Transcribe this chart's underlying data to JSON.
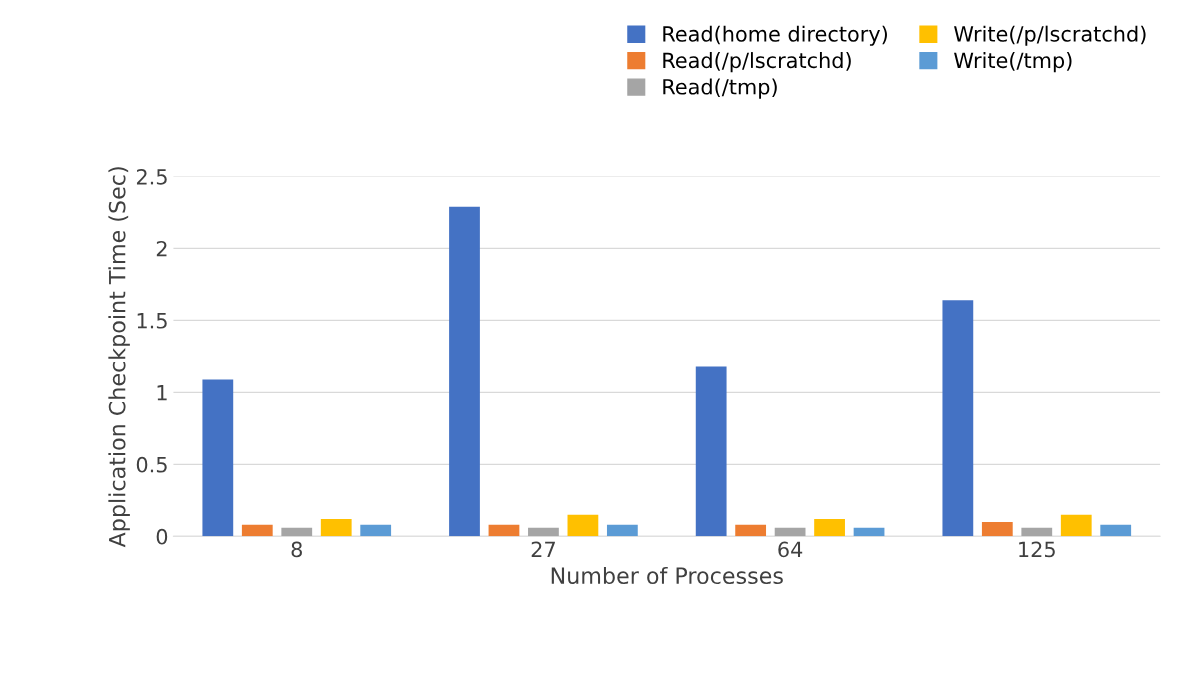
{
  "chart_data": {
    "type": "bar",
    "xlabel": "Number of Processes",
    "ylabel": "Application Checkpoint Time (Sec)",
    "categories": [
      "8",
      "27",
      "64",
      "125"
    ],
    "series": [
      {
        "name": "Read(home directory)",
        "color": "#4472c4",
        "values": [
          1.09,
          2.29,
          1.18,
          1.64
        ]
      },
      {
        "name": "Read(/p/lscratchd)",
        "color": "#ed7d31",
        "values": [
          0.08,
          0.08,
          0.08,
          0.1
        ]
      },
      {
        "name": "Read(/tmp)",
        "color": "#a5a5a5",
        "values": [
          0.06,
          0.06,
          0.06,
          0.06
        ]
      },
      {
        "name": "Write(/p/lscratchd)",
        "color": "#ffc000",
        "values": [
          0.12,
          0.15,
          0.12,
          0.15
        ]
      },
      {
        "name": "Write(/tmp)",
        "color": "#5b9bd5",
        "values": [
          0.08,
          0.08,
          0.06,
          0.08
        ]
      }
    ],
    "ylim": [
      0,
      2.5
    ],
    "yticks": [
      0,
      0.5,
      1,
      1.5,
      2,
      2.5
    ],
    "grid": "y",
    "legend": "top right"
  }
}
